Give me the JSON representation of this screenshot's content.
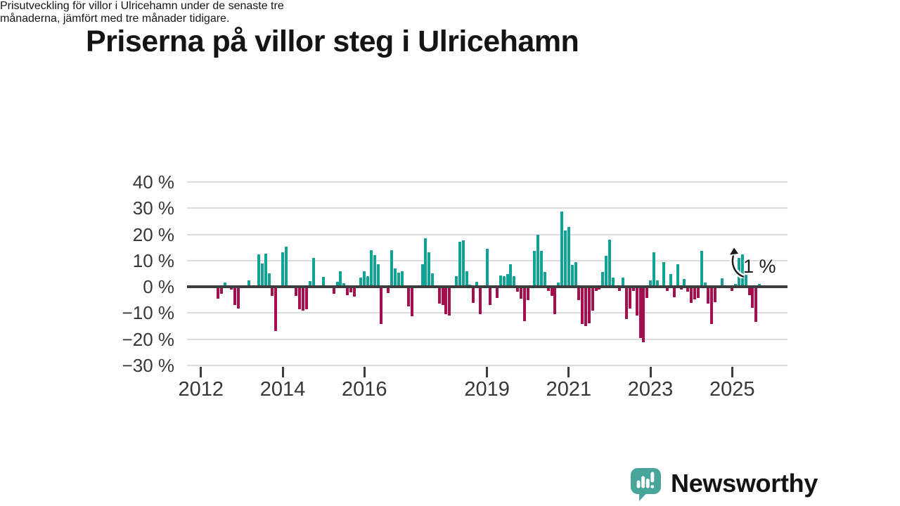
{
  "header": {
    "title": "Priserna på villor steg i Ulricehamn",
    "subtitle_line1": "Prisutveckling för villor i Ulricehamn under de senaste tre",
    "subtitle_line2": "månaderna, jämfört med tre månader tidigare."
  },
  "chart_data": {
    "type": "bar",
    "title": "Prisutveckling för villor i Ulricehamn, 3 månader jämfört med föregående 3 månader",
    "unit": "%",
    "x_start": "2012-06",
    "x_frequency": "monthly",
    "values": [
      -4.5,
      -2.6,
      1.6,
      0.5,
      -1.1,
      -6.9,
      -8.3,
      0,
      0,
      2.3,
      0,
      0,
      12.4,
      8.8,
      12.7,
      5.2,
      -3.5,
      -16.8,
      0,
      13.1,
      15.3,
      0,
      0,
      -3.6,
      -8.5,
      -9.2,
      -8.5,
      2.2,
      10.9,
      0,
      0,
      3.7,
      0,
      0,
      -2.7,
      2.0,
      5.8,
      1.3,
      -3.1,
      -2.1,
      -3.8,
      0,
      3.6,
      5.8,
      4.0,
      14.0,
      12.0,
      8.5,
      -14.3,
      0,
      -2.4,
      14.0,
      7.1,
      5.5,
      5.8,
      0,
      -7.6,
      -11.2,
      0,
      0,
      8.7,
      18.5,
      13.1,
      5.1,
      0,
      -6.5,
      -7.0,
      -10.5,
      -11.0,
      0,
      4.1,
      17.1,
      17.6,
      6.0,
      0.7,
      -6.2,
      2.0,
      -10.4,
      0,
      14.5,
      -7.0,
      0,
      -4.4,
      4.2,
      4.0,
      4.9,
      8.6,
      3.9,
      -2.0,
      -4.6,
      -13.2,
      -5.2,
      0,
      13.6,
      19.8,
      13.6,
      5.7,
      -1.6,
      -3.4,
      -10.5,
      1.5,
      28.7,
      21.6,
      22.7,
      8.2,
      9.5,
      -5.2,
      -14.1,
      -15.0,
      -13.9,
      -9.2,
      -1.5,
      -1.2,
      5.7,
      11.8,
      17.9,
      3.6,
      0.6,
      -1.6,
      3.6,
      -12.3,
      -8.3,
      -1.6,
      -11.0,
      -19.5,
      -21.3,
      -4.3,
      2.4,
      13.1,
      2.4,
      0,
      9.5,
      -1.6,
      4.8,
      -4.1,
      8.7,
      -1.2,
      2.9,
      -1.8,
      -6.1,
      -4.7,
      -4.3,
      13.6,
      1.5,
      -6.5,
      -14.1,
      -5.9,
      0,
      3.2,
      0,
      0,
      -1.7,
      1.1,
      11.0,
      12.3,
      4.5,
      -3.2,
      -8.1,
      -13.5,
      1.1
    ],
    "yticks": [
      40,
      30,
      20,
      10,
      0,
      -10,
      -20,
      -30
    ],
    "ytick_suffix": " %",
    "xticks": [
      2012,
      2014,
      2016,
      2019,
      2021,
      2023,
      2025
    ],
    "ylim": [
      -30,
      45
    ],
    "grid": true,
    "legend": "none",
    "annotation_label": "1 %",
    "annotation_value": 1,
    "colors": {
      "positive": "#11A296",
      "negative": "#A50E4D",
      "gridline": "#dcdcdc",
      "zero_line": "#3d3d3d",
      "axis_text": "#373737"
    }
  },
  "footer": {
    "brand": "Newsworthy",
    "logo_icon": "bar-chart-exclamation-speech-bubble",
    "brand_color": "#3FA79C"
  }
}
